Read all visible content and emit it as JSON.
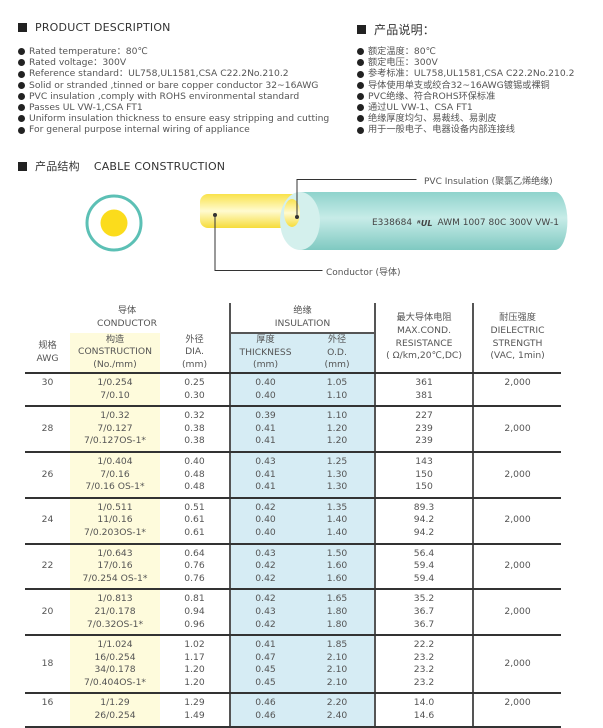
{
  "description_en": {
    "title": "PRODUCT DESCRIPTION",
    "items": [
      "Rated temperature：80℃",
      "Rated voltage：300V",
      "Reference standard：UL758,UL1581,CSA C22.2No.210.2",
      "Solid or stranded ,tinned or bare copper conductor 32~16AWG",
      "PVC insulation ,comply with ROHS environmental standard",
      "Passes UL VW-1,CSA FT1",
      "Uniform insulation thickness to ensure easy stripping and cutting",
      "For general purpose internal wiring of appliance"
    ]
  },
  "description_cn": {
    "title": "产品说明：",
    "items": [
      "额定温度：80℃",
      "额定电压：300V",
      "参考标准：UL758,UL1581,CSA C22.2No.210.2",
      "导体使用单支或绞合32~16AWG镀锡或裸铜",
      "PVC绝缘、符合ROHS环保标准",
      "通过UL VW-1、CSA FT1",
      "绝缘厚度均匀、易裁线、易剥皮",
      "用于一般电子、电器设备内部连接线"
    ]
  },
  "construction": {
    "title_cn": "产品结构",
    "title_en": "CABLE CONSTRUCTION",
    "insulation_label": "PVC Insulation (聚氯乙烯绝缘)",
    "conductor_label": "Conductor (导体)",
    "marking": "E338684",
    "marking_rest": "AWM 1007 80C 300V VW-1",
    "ul_logo": "UL",
    "colors": {
      "insulation": "#8fd3cc",
      "conductor": "#f9e24a"
    }
  },
  "table": {
    "headers": {
      "conductor_cn": "导体",
      "conductor_en": "CONDUCTOR",
      "insulation_cn": "绝缘",
      "insulation_en": "INSULATION",
      "awg_cn": "规格",
      "awg_en": "AWG",
      "construction_cn": "构造",
      "construction_en": "CONSTRUCTION",
      "construction_unit": "(No./mm)",
      "dia_cn": "外径",
      "dia_en": "DIA.",
      "dia_unit": "(mm)",
      "thick_cn": "厚度",
      "thick_en": "THICKNESS",
      "thick_unit": "(mm)",
      "od_cn": "外径",
      "od_en": "O.D.",
      "od_unit": "(mm)",
      "res_cn": "最大导体电阻",
      "res_en1": "MAX.COND.",
      "res_en2": "RESISTANCE",
      "res_unit": "( Ω/km,20℃,DC)",
      "diel_cn": "耐压强度",
      "diel_en1": "DIELECTRIC",
      "diel_en2": "STRENGTH",
      "diel_unit": "(VAC, 1min)"
    },
    "groups": [
      {
        "awg": "30",
        "dielectric": "2,000",
        "rows": [
          [
            "1/0.254",
            "0.25",
            "0.40",
            "1.05",
            "361"
          ],
          [
            "7/0.10",
            "0.30",
            "0.40",
            "1.10",
            "381"
          ]
        ]
      },
      {
        "awg": "28",
        "dielectric": "2,000",
        "rows": [
          [
            "1/0.32",
            "0.32",
            "0.39",
            "1.10",
            "227"
          ],
          [
            "7/0.127",
            "0.38",
            "0.41",
            "1.20",
            "239"
          ],
          [
            "7/0.127OS-1*",
            "0.38",
            "0.41",
            "1.20",
            "239"
          ]
        ]
      },
      {
        "awg": "26",
        "dielectric": "2,000",
        "rows": [
          [
            "1/0.404",
            "0.40",
            "0.43",
            "1.25",
            "143"
          ],
          [
            "7/0.16",
            "0.48",
            "0.41",
            "1.30",
            "150"
          ],
          [
            "7/0.16 OS-1*",
            "0.48",
            "0.41",
            "1.30",
            "150"
          ]
        ]
      },
      {
        "awg": "24",
        "dielectric": "2,000",
        "rows": [
          [
            "1/0.511",
            "0.51",
            "0.42",
            "1.35",
            "89.3"
          ],
          [
            "11/0.16",
            "0.61",
            "0.40",
            "1.40",
            "94.2"
          ],
          [
            "7/0.203OS-1*",
            "0.61",
            "0.40",
            "1.40",
            "94.2"
          ]
        ]
      },
      {
        "awg": "22",
        "dielectric": "2,000",
        "rows": [
          [
            "1/0.643",
            "0.64",
            "0.43",
            "1.50",
            "56.4"
          ],
          [
            "17/0.16",
            "0.76",
            "0.42",
            "1.60",
            "59.4"
          ],
          [
            "7/0.254 OS-1*",
            "0.76",
            "0.42",
            "1.60",
            "59.4"
          ]
        ]
      },
      {
        "awg": "20",
        "dielectric": "2,000",
        "rows": [
          [
            "1/0.813",
            "0.81",
            "0.42",
            "1.65",
            "35.2"
          ],
          [
            "21/0.178",
            "0.94",
            "0.43",
            "1.80",
            "36.7"
          ],
          [
            "7/0.32OS-1*",
            "0.96",
            "0.42",
            "1.80",
            "36.7"
          ]
        ]
      },
      {
        "awg": "18",
        "dielectric": "2,000",
        "rows": [
          [
            "1/1.024",
            "1.02",
            "0.41",
            "1.85",
            "22.2"
          ],
          [
            "16/0.254",
            "1.17",
            "0.47",
            "2.10",
            "23.2"
          ],
          [
            "34/0.178",
            "1.20",
            "0.45",
            "2.10",
            "23.2"
          ],
          [
            "7/0.404OS-1*",
            "1.20",
            "0.45",
            "2.10",
            "23.2"
          ]
        ]
      },
      {
        "awg": "16",
        "dielectric": "2,000",
        "rows": [
          [
            "1/1.29",
            "1.29",
            "0.46",
            "2.20",
            "14.0"
          ],
          [
            "26/0.254",
            "1.49",
            "0.46",
            "2.40",
            "14.6"
          ]
        ]
      }
    ]
  }
}
